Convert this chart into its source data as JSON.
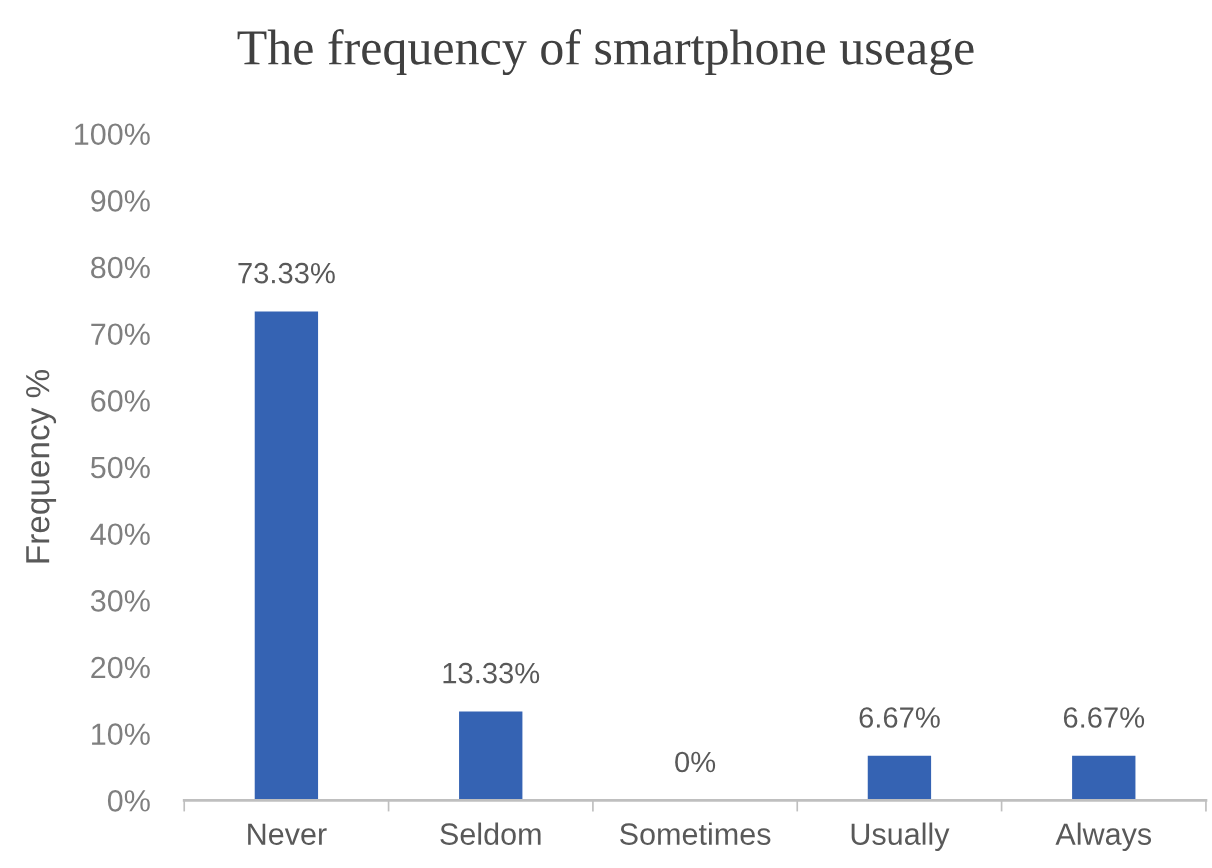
{
  "chart_data": {
    "type": "bar",
    "title": "The frequency of smartphone useage",
    "ylabel": "Frequency %",
    "categories": [
      "Never",
      "Seldom",
      "Sometimes",
      "Usually",
      "Always"
    ],
    "values": [
      73.33,
      13.33,
      0,
      6.67,
      6.67
    ],
    "color": "#3563b3",
    "value_labels": [
      "73.33%",
      "13.33%",
      "0%",
      "6.67%",
      "6.67%"
    ],
    "ylim": [
      0,
      100
    ],
    "yticks": [
      {
        "value": 0,
        "label": "0%"
      },
      {
        "value": 10,
        "label": "10%"
      },
      {
        "value": 20,
        "label": "20%"
      },
      {
        "value": 30,
        "label": "30%"
      },
      {
        "value": 40,
        "label": "40%"
      },
      {
        "value": 50,
        "label": "50%"
      },
      {
        "value": 60,
        "label": "60%"
      },
      {
        "value": 70,
        "label": "70%"
      },
      {
        "value": 80,
        "label": "80%"
      },
      {
        "value": 90,
        "label": "90%"
      },
      {
        "value": 100,
        "label": "100%"
      }
    ]
  }
}
